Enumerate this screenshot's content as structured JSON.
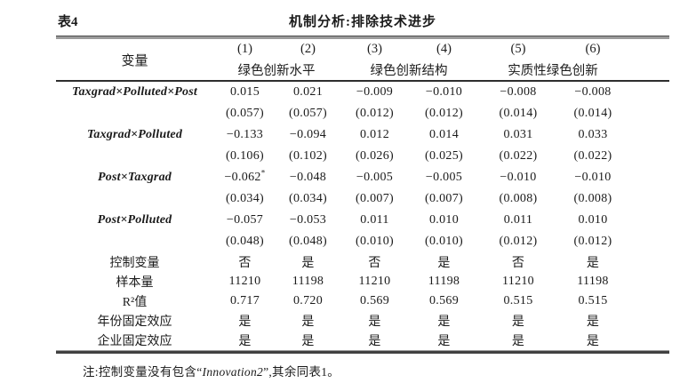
{
  "caption": {
    "table_label": "表4",
    "title": "机制分析:排除技术进步"
  },
  "header": {
    "variable_label": "变量",
    "col_numbers": [
      "(1)",
      "(2)",
      "(3)",
      "(4)",
      "(5)",
      "(6)"
    ],
    "groups": [
      {
        "label": "绿色创新水平"
      },
      {
        "label": "绿色创新结构"
      },
      {
        "label": "实质性绿色创新"
      }
    ]
  },
  "table": {
    "coefficients": [
      {
        "variable": "Taxgrad×Polluted×Post",
        "estimates": [
          "0.015",
          "0.021",
          "−0.009",
          "−0.010",
          "−0.008",
          "−0.008"
        ],
        "sig": [
          "",
          "",
          "",
          "",
          "",
          ""
        ],
        "std_errors": [
          "(0.057)",
          "(0.057)",
          "(0.012)",
          "(0.012)",
          "(0.014)",
          "(0.014)"
        ]
      },
      {
        "variable": "Taxgrad×Polluted",
        "estimates": [
          "−0.133",
          "−0.094",
          "0.012",
          "0.014",
          "0.031",
          "0.033"
        ],
        "sig": [
          "",
          "",
          "",
          "",
          "",
          ""
        ],
        "std_errors": [
          "(0.106)",
          "(0.102)",
          "(0.026)",
          "(0.025)",
          "(0.022)",
          "(0.022)"
        ]
      },
      {
        "variable": "Post×Taxgrad",
        "estimates": [
          "−0.062",
          "−0.048",
          "−0.005",
          "−0.005",
          "−0.010",
          "−0.010"
        ],
        "sig": [
          "*",
          "",
          "",
          "",
          "",
          ""
        ],
        "std_errors": [
          "(0.034)",
          "(0.034)",
          "(0.007)",
          "(0.007)",
          "(0.008)",
          "(0.008)"
        ]
      },
      {
        "variable": "Post×Polluted",
        "estimates": [
          "−0.057",
          "−0.053",
          "0.011",
          "0.010",
          "0.011",
          "0.010"
        ],
        "sig": [
          "",
          "",
          "",
          "",
          "",
          ""
        ],
        "std_errors": [
          "(0.048)",
          "(0.048)",
          "(0.010)",
          "(0.010)",
          "(0.012)",
          "(0.012)"
        ]
      }
    ],
    "statistics": [
      {
        "label": "控制变量",
        "values": [
          "否",
          "是",
          "否",
          "是",
          "否",
          "是"
        ]
      },
      {
        "label": "样本量",
        "values": [
          "11210",
          "11198",
          "11210",
          "11198",
          "11210",
          "11198"
        ]
      },
      {
        "label": "R²值",
        "values": [
          "0.717",
          "0.720",
          "0.569",
          "0.569",
          "0.515",
          "0.515"
        ]
      },
      {
        "label": "年份固定效应",
        "values": [
          "是",
          "是",
          "是",
          "是",
          "是",
          "是"
        ]
      },
      {
        "label": "企业固定效应",
        "values": [
          "是",
          "是",
          "是",
          "是",
          "是",
          "是"
        ]
      }
    ]
  },
  "note": {
    "prefix": "注:控制变量没有包含“",
    "emphasis": "Innovation2",
    "suffix": "”,其余同表1。"
  }
}
